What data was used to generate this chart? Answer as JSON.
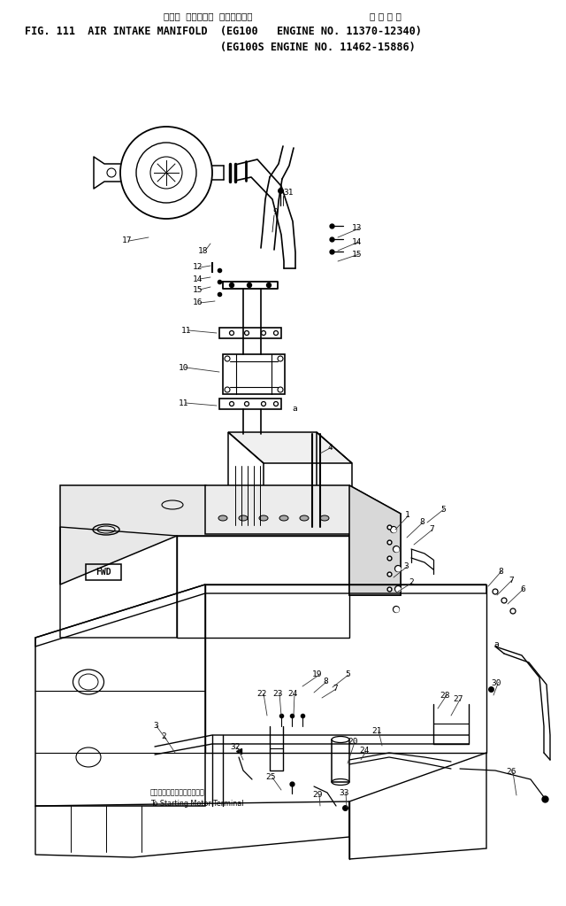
{
  "bg_color": "#ffffff",
  "line_color": "#000000",
  "title_jp1": "エアー  インテーク  マニホールド",
  "title_jp2": "適 用 号 機",
  "title_en1": "FIG. 111  AIR INTAKE MANIFOLD  (EG100   ENGINE NO. 11370-12340)",
  "title_en2": "                               (EG100S ENGINE NO. 11462-15886)",
  "footer_jp": "スターティングモータ端子へ",
  "footer_en": "To Starting Motor Terminal"
}
